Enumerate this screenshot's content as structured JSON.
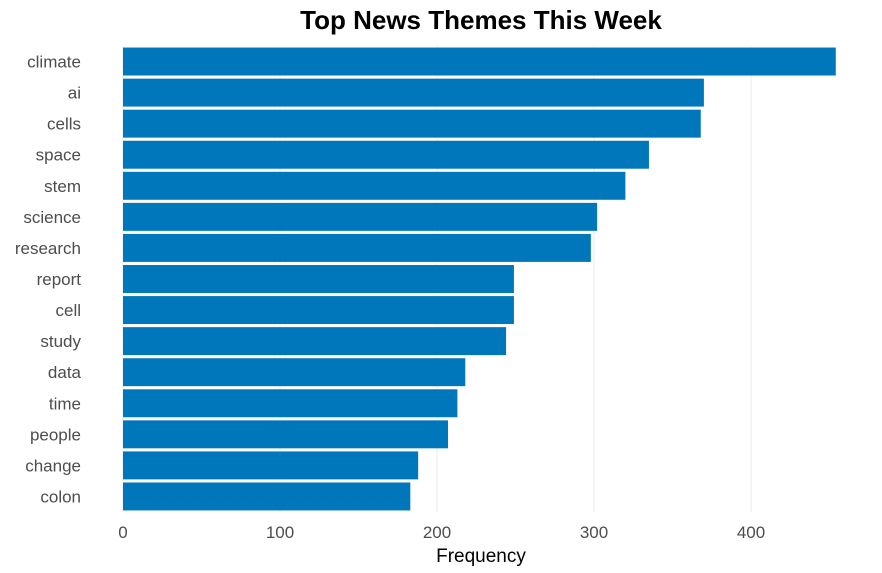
{
  "chart_data": {
    "type": "bar",
    "orientation": "horizontal",
    "title": "Top News Themes This Week",
    "xlabel": "Frequency",
    "ylabel": "",
    "categories": [
      "climate",
      "ai",
      "cells",
      "space",
      "stem",
      "science",
      "research",
      "report",
      "cell",
      "study",
      "data",
      "time",
      "people",
      "change",
      "colon"
    ],
    "values": [
      454,
      370,
      368,
      335,
      320,
      302,
      298,
      249,
      249,
      244,
      218,
      213,
      207,
      188,
      183
    ],
    "xlim": [
      0,
      460
    ],
    "xticks": [
      0,
      100,
      200,
      300,
      400
    ],
    "bar_color": "#0077bb",
    "grid": "vertical-major"
  }
}
